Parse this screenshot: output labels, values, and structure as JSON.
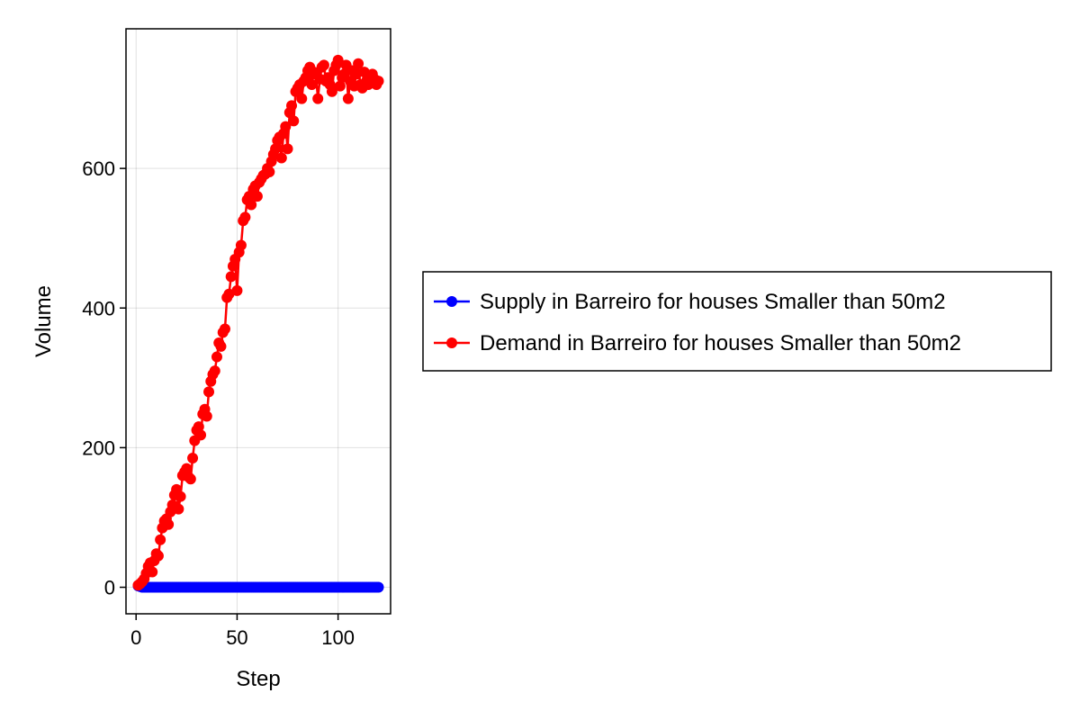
{
  "chart_data": {
    "type": "scatter",
    "title": "",
    "xlabel": "Step",
    "ylabel": "Volume",
    "xlim": [
      -5,
      126
    ],
    "ylim": [
      -38,
      800
    ],
    "xticks": [
      0,
      50,
      100
    ],
    "yticks": [
      0,
      200,
      400,
      600
    ],
    "grid": true,
    "legend_position": "right",
    "series": [
      {
        "name": "Supply in Barreiro for houses Smaller than 50m2",
        "color": "#0000ff",
        "x": [
          1,
          2,
          3,
          4,
          5,
          6,
          7,
          8,
          9,
          10,
          11,
          12,
          13,
          14,
          15,
          16,
          17,
          18,
          19,
          20,
          21,
          22,
          23,
          24,
          25,
          26,
          27,
          28,
          29,
          30,
          31,
          32,
          33,
          34,
          35,
          36,
          37,
          38,
          39,
          40,
          41,
          42,
          43,
          44,
          45,
          46,
          47,
          48,
          49,
          50,
          51,
          52,
          53,
          54,
          55,
          56,
          57,
          58,
          59,
          60,
          61,
          62,
          63,
          64,
          65,
          66,
          67,
          68,
          69,
          70,
          71,
          72,
          73,
          74,
          75,
          76,
          77,
          78,
          79,
          80,
          81,
          82,
          83,
          84,
          85,
          86,
          87,
          88,
          89,
          90,
          91,
          92,
          93,
          94,
          95,
          96,
          97,
          98,
          99,
          100,
          101,
          102,
          103,
          104,
          105,
          106,
          107,
          108,
          109,
          110,
          111,
          112,
          113,
          114,
          115,
          116,
          117,
          118,
          119,
          120
        ],
        "y": [
          2,
          1,
          0,
          0,
          0,
          0,
          0,
          0,
          0,
          0,
          0,
          0,
          0,
          0,
          0,
          0,
          0,
          0,
          0,
          0,
          0,
          0,
          0,
          0,
          0,
          0,
          0,
          0,
          0,
          0,
          0,
          0,
          0,
          0,
          0,
          0,
          0,
          0,
          0,
          0,
          0,
          0,
          0,
          0,
          0,
          0,
          0,
          0,
          0,
          0,
          0,
          0,
          0,
          0,
          0,
          0,
          0,
          0,
          0,
          0,
          0,
          0,
          0,
          0,
          0,
          0,
          0,
          0,
          0,
          0,
          0,
          0,
          0,
          0,
          0,
          0,
          0,
          0,
          0,
          0,
          0,
          0,
          0,
          0,
          0,
          0,
          0,
          0,
          0,
          0,
          0,
          0,
          0,
          0,
          0,
          0,
          0,
          0,
          0,
          0,
          0,
          0,
          0,
          0,
          0,
          0,
          0,
          0,
          0,
          0,
          0,
          0,
          0,
          0,
          0,
          0,
          0,
          0,
          0,
          0
        ]
      },
      {
        "name": "Demand in Barreiro for houses Smaller than 50m2",
        "color": "#ff0000",
        "x": [
          1,
          2,
          3,
          4,
          5,
          6,
          7,
          8,
          9,
          10,
          11,
          12,
          13,
          14,
          15,
          16,
          17,
          18,
          19,
          20,
          21,
          22,
          23,
          24,
          25,
          26,
          27,
          28,
          29,
          30,
          31,
          32,
          33,
          34,
          35,
          36,
          37,
          38,
          39,
          40,
          41,
          42,
          43,
          44,
          45,
          46,
          47,
          48,
          49,
          50,
          51,
          52,
          53,
          54,
          55,
          56,
          57,
          58,
          59,
          60,
          61,
          62,
          63,
          64,
          65,
          66,
          67,
          68,
          69,
          70,
          71,
          72,
          73,
          74,
          75,
          76,
          77,
          78,
          79,
          80,
          81,
          82,
          83,
          84,
          85,
          86,
          87,
          88,
          89,
          90,
          91,
          92,
          93,
          94,
          95,
          96,
          97,
          98,
          99,
          100,
          101,
          102,
          103,
          104,
          105,
          106,
          107,
          108,
          109,
          110,
          111,
          112,
          113,
          114,
          115,
          116,
          117,
          118,
          119,
          120
        ],
        "y": [
          3,
          5,
          8,
          12,
          20,
          30,
          35,
          22,
          38,
          48,
          45,
          68,
          85,
          95,
          98,
          90,
          108,
          118,
          132,
          140,
          112,
          130,
          160,
          165,
          170,
          158,
          155,
          185,
          210,
          225,
          230,
          218,
          248,
          255,
          245,
          280,
          295,
          305,
          310,
          330,
          350,
          345,
          365,
          370,
          415,
          420,
          445,
          460,
          470,
          425,
          480,
          490,
          525,
          530,
          555,
          560,
          548,
          570,
          575,
          560,
          580,
          585,
          590,
          592,
          600,
          595,
          610,
          620,
          628,
          640,
          645,
          615,
          650,
          660,
          628,
          680,
          690,
          668,
          710,
          715,
          720,
          700,
          725,
          730,
          740,
          745,
          720,
          738,
          735,
          700,
          728,
          745,
          748,
          725,
          730,
          720,
          710,
          740,
          748,
          755,
          718,
          730,
          735,
          748,
          700,
          725,
          740,
          718,
          735,
          750,
          720,
          715,
          738,
          725,
          720,
          730,
          735,
          728,
          720,
          725
        ]
      }
    ]
  }
}
